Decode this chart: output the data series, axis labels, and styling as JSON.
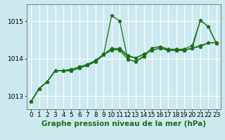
{
  "title": "",
  "xlabel": "Graphe pression niveau de la mer (hPa)",
  "bg_color": "#cce9f0",
  "plot_bg_color": "#cce9f0",
  "grid_color": "#ffffff",
  "line_color": "#1a6e1a",
  "ylim": [
    1012.65,
    1015.45
  ],
  "xlim": [
    -0.5,
    23.5
  ],
  "yticks": [
    1013,
    1014,
    1015
  ],
  "xticks": [
    0,
    1,
    2,
    3,
    4,
    5,
    6,
    7,
    8,
    9,
    10,
    11,
    12,
    13,
    14,
    15,
    16,
    17,
    18,
    19,
    20,
    21,
    22,
    23
  ],
  "series": [
    [
      1012.85,
      1013.2,
      1013.38,
      1013.68,
      1013.68,
      1013.68,
      1013.75,
      1013.82,
      1013.92,
      1014.1,
      1015.15,
      1015.0,
      1013.98,
      1013.92,
      1014.08,
      1014.28,
      1014.32,
      1014.25,
      1014.22,
      1014.22,
      1014.28,
      1015.02,
      1014.85,
      1014.4
    ],
    [
      1012.85,
      1013.2,
      1013.38,
      1013.68,
      1013.68,
      1013.68,
      1013.75,
      1013.82,
      1013.92,
      1014.1,
      1014.28,
      1014.22,
      1013.98,
      1013.92,
      1014.05,
      1014.28,
      1014.32,
      1014.25,
      1014.25,
      1014.25,
      1014.35,
      1015.02,
      1014.85,
      1014.4
    ],
    [
      1012.85,
      1013.2,
      1013.38,
      1013.68,
      1013.68,
      1013.68,
      1013.75,
      1013.82,
      1013.92,
      1014.1,
      1014.22,
      1014.25,
      1014.05,
      1014.02,
      1014.12,
      1014.22,
      1014.28,
      1014.22,
      1014.22,
      1014.22,
      1014.28,
      1014.35,
      1014.42,
      1014.42
    ],
    [
      1012.85,
      1013.2,
      1013.38,
      1013.68,
      1013.68,
      1013.72,
      1013.78,
      1013.85,
      1013.95,
      1014.12,
      1014.25,
      1014.28,
      1014.08,
      1014.02,
      1014.12,
      1014.22,
      1014.28,
      1014.22,
      1014.22,
      1014.22,
      1014.28,
      1014.32,
      1014.42,
      1014.42
    ]
  ],
  "marker": "*",
  "markersize": 3.5,
  "linewidth": 0.9,
  "xlabel_fontsize": 7.5,
  "tick_fontsize": 6.5
}
